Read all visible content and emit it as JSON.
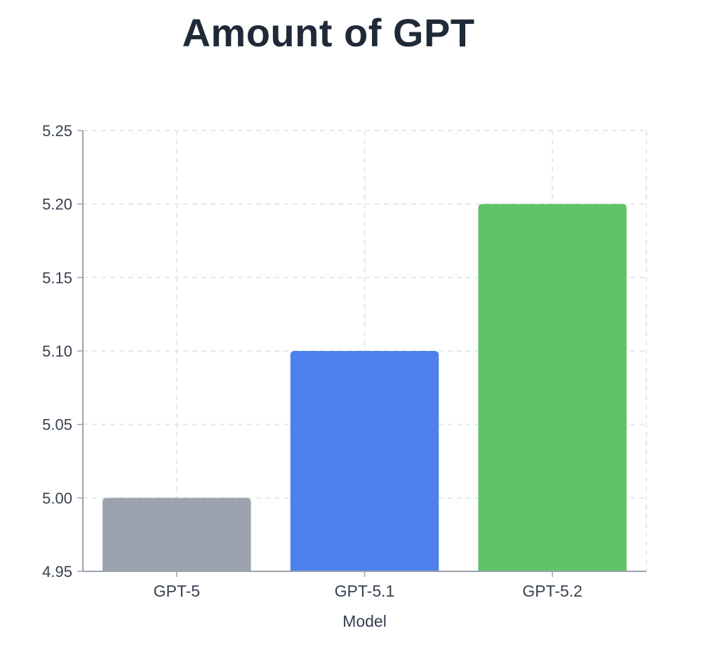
{
  "chart_data": {
    "type": "bar",
    "title": "Amount of GPT",
    "xlabel": "Model",
    "ylabel": "",
    "categories": [
      "GPT-5",
      "GPT-5.1",
      "GPT-5.2"
    ],
    "values": [
      5.0,
      5.1,
      5.2
    ],
    "colors": [
      "#9ca3af",
      "#4f81ee",
      "#5fc36a"
    ],
    "ylim": [
      4.95,
      5.25
    ],
    "yticks": [
      "4.95",
      "5.00",
      "5.05",
      "5.10",
      "5.15",
      "5.20",
      "5.25"
    ],
    "grid": true,
    "grid_color": "#e5e7eb",
    "axis_color": "#9ca3af",
    "legend": "none"
  }
}
